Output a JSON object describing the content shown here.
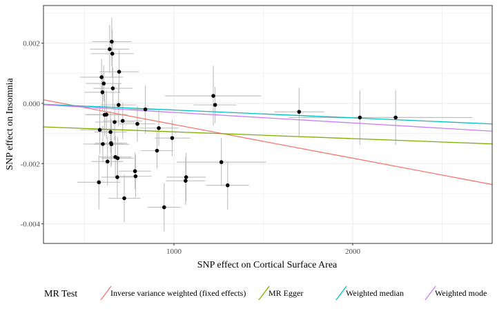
{
  "chart_data": {
    "type": "scatter",
    "xlabel": "SNP effect on Cortical Surface Area",
    "ylabel": "SNP effect on Insomnia",
    "xlim": [
      270,
      2780
    ],
    "ylim": [
      -0.00465,
      0.00325
    ],
    "x_ticks": [
      1000,
      2000
    ],
    "x_tick_labels": [
      "1000",
      "2000"
    ],
    "y_ticks": [
      0.002,
      0.0,
      -0.002,
      -0.004
    ],
    "y_tick_labels": [
      "0.002",
      "0.000",
      "-0.002",
      "-0.004"
    ],
    "grid": true,
    "legend_position": "bottom",
    "legend_title": "MR Test",
    "points": [
      {
        "x": 580,
        "y": -0.00262,
        "xerr": 120,
        "yerr": 0.0009
      },
      {
        "x": 585,
        "y": -0.00088,
        "xerr": 110,
        "yerr": 0.0008
      },
      {
        "x": 595,
        "y": 0.00087,
        "xerr": 120,
        "yerr": 0.0006
      },
      {
        "x": 600,
        "y": 0.00037,
        "xerr": 100,
        "yerr": 0.0006
      },
      {
        "x": 602,
        "y": -0.00135,
        "xerr": 110,
        "yerr": 0.0006
      },
      {
        "x": 607,
        "y": 0.00066,
        "xerr": 100,
        "yerr": 0.0006
      },
      {
        "x": 612,
        "y": -0.00038,
        "xerr": 100,
        "yerr": 0.0007
      },
      {
        "x": 622,
        "y": -0.00037,
        "xerr": 120,
        "yerr": 0.0008
      },
      {
        "x": 628,
        "y": -0.00193,
        "xerr": 90,
        "yerr": 0.0008
      },
      {
        "x": 640,
        "y": 0.0018,
        "xerr": 110,
        "yerr": 0.0008
      },
      {
        "x": 645,
        "y": -0.00095,
        "xerr": 90,
        "yerr": 0.0007
      },
      {
        "x": 648,
        "y": -0.00132,
        "xerr": 90,
        "yerr": 0.0008
      },
      {
        "x": 650,
        "y": -0.00136,
        "xerr": 100,
        "yerr": 0.0007
      },
      {
        "x": 652,
        "y": 0.00205,
        "xerr": 110,
        "yerr": 0.0008
      },
      {
        "x": 655,
        "y": 0.00165,
        "xerr": 120,
        "yerr": 0.0008
      },
      {
        "x": 658,
        "y": 0.0005,
        "xerr": 110,
        "yerr": 0.0007
      },
      {
        "x": 668,
        "y": -0.00062,
        "xerr": 110,
        "yerr": 0.0006
      },
      {
        "x": 672,
        "y": -0.00178,
        "xerr": 90,
        "yerr": 0.0007
      },
      {
        "x": 685,
        "y": -0.00182,
        "xerr": 90,
        "yerr": 0.0007
      },
      {
        "x": 683,
        "y": -0.00245,
        "xerr": 90,
        "yerr": 0.0007
      },
      {
        "x": 690,
        "y": -5e-05,
        "xerr": 100,
        "yerr": 0.0007
      },
      {
        "x": 693,
        "y": 0.00105,
        "xerr": 110,
        "yerr": 0.0007
      },
      {
        "x": 713,
        "y": -0.00058,
        "xerr": 110,
        "yerr": 0.0006
      },
      {
        "x": 722,
        "y": -0.00315,
        "xerr": 90,
        "yerr": 0.0008
      },
      {
        "x": 782,
        "y": -0.00225,
        "xerr": 90,
        "yerr": 0.0006
      },
      {
        "x": 785,
        "y": -0.00242,
        "xerr": 90,
        "yerr": 0.0007
      },
      {
        "x": 795,
        "y": -0.00068,
        "xerr": 100,
        "yerr": 0.0006
      },
      {
        "x": 840,
        "y": -0.0002,
        "xerr": 90,
        "yerr": 0.0008
      },
      {
        "x": 905,
        "y": -0.00157,
        "xerr": 90,
        "yerr": 0.0006
      },
      {
        "x": 915,
        "y": -0.00082,
        "xerr": 110,
        "yerr": 0.0006
      },
      {
        "x": 945,
        "y": -0.00345,
        "xerr": 90,
        "yerr": 0.0008
      },
      {
        "x": 990,
        "y": -0.00115,
        "xerr": 100,
        "yerr": 0.0006
      },
      {
        "x": 1065,
        "y": -0.00257,
        "xerr": 110,
        "yerr": 0.0008
      },
      {
        "x": 1068,
        "y": -0.00245,
        "xerr": 110,
        "yerr": 0.0008
      },
      {
        "x": 1220,
        "y": 0.00025,
        "xerr": 270,
        "yerr": 0.001
      },
      {
        "x": 1230,
        "y": -5e-05,
        "xerr": 120,
        "yerr": 0.0006
      },
      {
        "x": 1265,
        "y": -0.00195,
        "xerr": 250,
        "yerr": 0.0008
      },
      {
        "x": 1300,
        "y": -0.00272,
        "xerr": 120,
        "yerr": 0.0008
      },
      {
        "x": 1700,
        "y": -0.00028,
        "xerr": 140,
        "yerr": 0.0008
      },
      {
        "x": 2040,
        "y": -0.00047,
        "xerr": 400,
        "yerr": 0.0009
      },
      {
        "x": 2240,
        "y": -0.00047,
        "xerr": 430,
        "yerr": 0.0009
      }
    ],
    "series": [
      {
        "name": "Inverse variance weighted (fixed effects)",
        "color": "#F8766D",
        "intercept": 0.00042,
        "slope": -1.12e-06
      },
      {
        "name": "MR Egger",
        "color": "#7CAE00",
        "intercept": -0.00072,
        "slope": -2.25e-07
      },
      {
        "name": "Weighted median",
        "color": "#00BFC4",
        "intercept": 4e-05,
        "slope": -2.6e-07
      },
      {
        "name": "Weighted mode",
        "color": "#C77CFF",
        "intercept": 5e-05,
        "slope": -3.5e-07
      }
    ]
  }
}
